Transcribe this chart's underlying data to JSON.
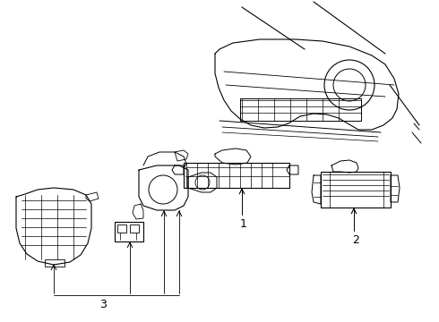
{
  "background_color": "#ffffff",
  "line_color": "#000000",
  "label_1": "1",
  "label_2": "2",
  "label_3": "3",
  "label_fontsize": 9,
  "figsize": [
    4.9,
    3.6
  ],
  "dpi": 100
}
